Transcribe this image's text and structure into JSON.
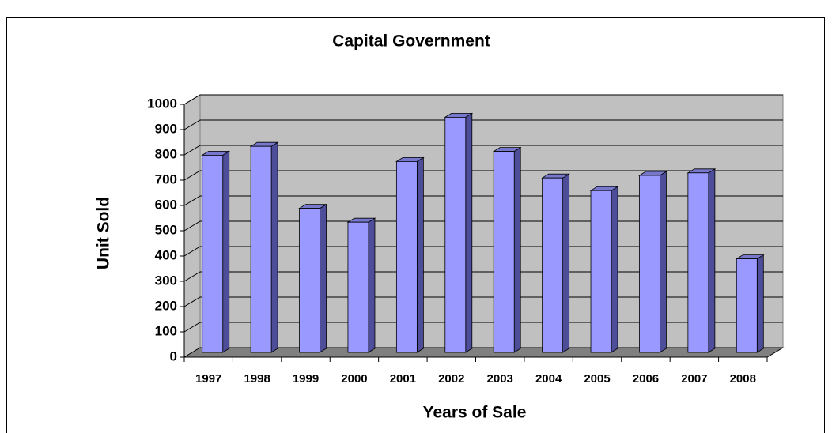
{
  "chart_data": {
    "type": "bar",
    "title": "Capital Government",
    "x_label": "Years of Sale",
    "y_label": "Unit Sold",
    "categories": [
      "1997",
      "1998",
      "1999",
      "2000",
      "2001",
      "2002",
      "2003",
      "2004",
      "2005",
      "2006",
      "2007",
      "2008"
    ],
    "values": [
      780,
      815,
      570,
      515,
      755,
      930,
      795,
      690,
      640,
      700,
      710,
      370
    ],
    "color": "#9999ff",
    "ylim": [
      0,
      1000
    ],
    "yticks": [
      0,
      100,
      200,
      300,
      400,
      500,
      600,
      700,
      800,
      900,
      1000
    ],
    "grid": true
  }
}
